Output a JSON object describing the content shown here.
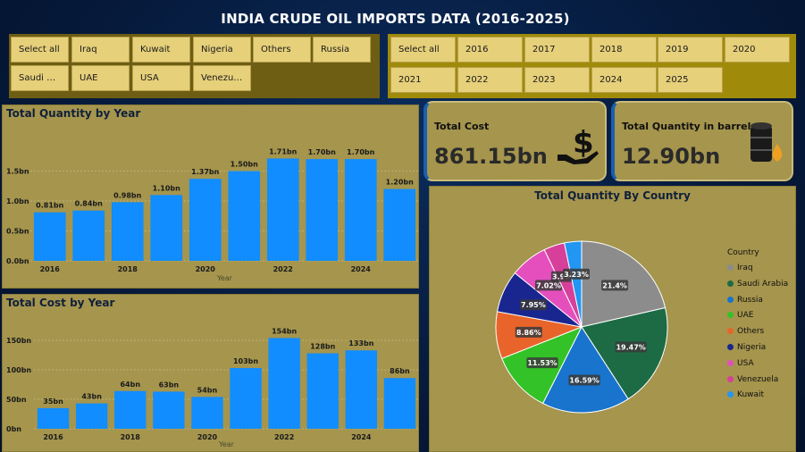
{
  "title": "INDIA CRUDE OIL IMPORTS DATA (2016-2025)",
  "country_slicer": {
    "items": [
      "Select all",
      "Iraq",
      "Kuwait",
      "Nigeria",
      "Others",
      "Russia",
      "Saudi Ar...",
      "UAE",
      "USA",
      "Venezuela"
    ]
  },
  "year_slicer": {
    "items": [
      "Select all",
      "2016",
      "2017",
      "2018",
      "2019",
      "2020",
      "2021",
      "2022",
      "2023",
      "2024",
      "2025"
    ]
  },
  "kpis": {
    "cost_label": "Total Cost",
    "cost_value": "861.15bn",
    "qty_label": "Total Quantity in barrels",
    "qty_value": "12.90bn"
  },
  "colors": {
    "bar": "#118dff",
    "panel": "#a5954d",
    "accent": "#1a5fb0"
  },
  "chart_data": [
    {
      "type": "bar",
      "title": "Total Quantity by Year",
      "xlabel": "Year",
      "ylabel": "",
      "categories": [
        "2016",
        "2017",
        "2018",
        "2019",
        "2020",
        "2021",
        "2022",
        "2023",
        "2024",
        "2025"
      ],
      "values": [
        0.81,
        0.84,
        0.98,
        1.1,
        1.37,
        1.5,
        1.71,
        1.7,
        1.7,
        1.2
      ],
      "data_labels": [
        "0.81bn",
        "0.84bn",
        "0.98bn",
        "1.10bn",
        "1.37bn",
        "1.50bn",
        "1.71bn",
        "1.70bn",
        "1.70bn",
        "1.20bn"
      ],
      "x_tick_labels": [
        "2016",
        "",
        "2018",
        "",
        "2020",
        "",
        "2022",
        "",
        "2024",
        ""
      ],
      "y_ticks": [
        0,
        0.5,
        1.0,
        1.5
      ],
      "y_tick_labels": [
        "0.0bn",
        "0.5bn",
        "1.0bn",
        "1.5bn"
      ],
      "ylim": [
        0,
        1.8
      ],
      "grid": true
    },
    {
      "type": "bar",
      "title": "Total Cost by Year",
      "xlabel": "Year",
      "ylabel": "",
      "categories": [
        "2016",
        "2017",
        "2018",
        "2019",
        "2020",
        "2021",
        "2022",
        "2023",
        "2024",
        "2025"
      ],
      "values": [
        35,
        43,
        64,
        63,
        54,
        103,
        154,
        128,
        133,
        86
      ],
      "data_labels": [
        "35bn",
        "43bn",
        "64bn",
        "63bn",
        "54bn",
        "103bn",
        "154bn",
        "128bn",
        "133bn",
        "86bn"
      ],
      "x_tick_labels": [
        "2016",
        "",
        "2018",
        "",
        "2020",
        "",
        "2022",
        "",
        "2024",
        ""
      ],
      "y_ticks": [
        0,
        50,
        100,
        150
      ],
      "y_tick_labels": [
        "0bn",
        "50bn",
        "100bn",
        "150bn"
      ],
      "ylim": [
        0,
        160
      ],
      "grid": true
    },
    {
      "type": "pie",
      "title": "Total Quantity By Country",
      "legend_title": "Country",
      "legend_position": "right",
      "series": [
        {
          "name": "Iraq",
          "value": 21.4,
          "label": "21.4%",
          "color": "#8c8c8c"
        },
        {
          "name": "Saudi Arabia",
          "value": 19.47,
          "label": "19.47%",
          "color": "#1d6b45"
        },
        {
          "name": "Russia",
          "value": 16.59,
          "label": "16.59%",
          "color": "#1874cd"
        },
        {
          "name": "UAE",
          "value": 11.53,
          "label": "11.53%",
          "color": "#33c227"
        },
        {
          "name": "Others",
          "value": 8.86,
          "label": "8.86%",
          "color": "#e8642a"
        },
        {
          "name": "Nigeria",
          "value": 7.95,
          "label": "7.95%",
          "color": "#1a2690"
        },
        {
          "name": "USA",
          "value": 7.02,
          "label": "7.02%",
          "color": "#e44fbd"
        },
        {
          "name": "Venezuela",
          "value": 3.93,
          "label": "3.93%",
          "color": "#d6409a"
        },
        {
          "name": "Kuwait",
          "value": 3.23,
          "label": "3.23%",
          "color": "#2196f3"
        }
      ]
    }
  ]
}
